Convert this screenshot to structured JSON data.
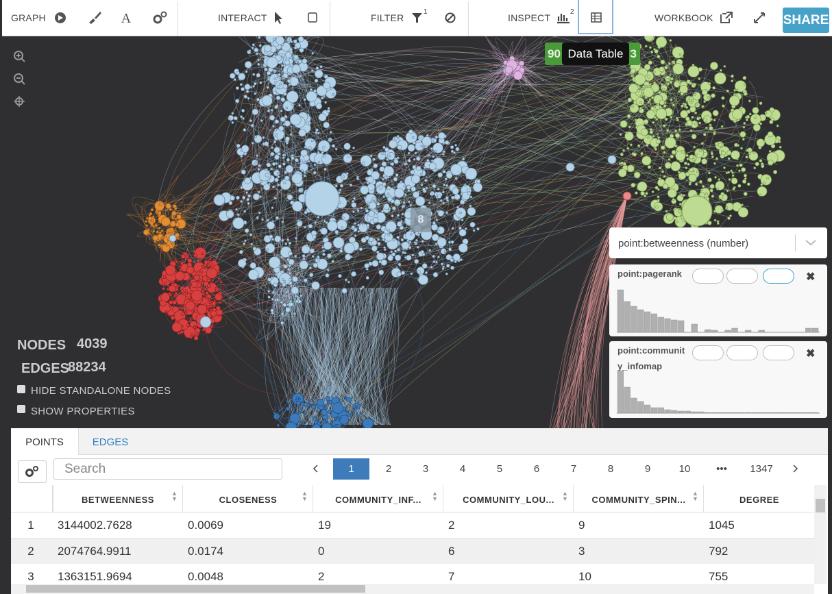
{
  "toolbar": {
    "graph": "GRAPH",
    "interact": "INTERACT",
    "filter": "FILTER",
    "filter_count": "1",
    "inspect": "INSPECT",
    "inspect_count": "2",
    "workbook": "WORKBOOK",
    "share": "SHARE"
  },
  "tooltip": "Data Table",
  "badges": [
    "90",
    "3"
  ],
  "graph": {
    "cluster_label": "8",
    "nodes_label": "NODES",
    "nodes": 4039,
    "edges_label": "EDGES",
    "edges": 88234,
    "hide_standalone": "HIDE STANDALONE NODES",
    "show_properties": "SHOW PROPERTIES"
  },
  "inspector": {
    "selector": "point:betweenness (number)",
    "histograms": [
      {
        "title": "point:pagerank",
        "bars": [
          62,
          45,
          38,
          33,
          30,
          27,
          22,
          20,
          18,
          17,
          0,
          12,
          0,
          4,
          3,
          0,
          3,
          6,
          0,
          3,
          0,
          3,
          0,
          0,
          0,
          0,
          0,
          0,
          6,
          6
        ]
      },
      {
        "title": "point:community_infomap",
        "bars": [
          62,
          38,
          22,
          17,
          12,
          8,
          8,
          5,
          4,
          3,
          3,
          2,
          2,
          1,
          1,
          1,
          1,
          1,
          1,
          1,
          1,
          1,
          1,
          1,
          1,
          1,
          1,
          1,
          1,
          1
        ]
      }
    ]
  },
  "table": {
    "tabs": [
      "POINTS",
      "EDGES"
    ],
    "search": "Search",
    "pages": [
      1,
      2,
      3,
      4,
      5,
      6,
      7,
      8,
      9,
      10,
      "•••",
      1347
    ],
    "columns": [
      "BETWEENNESS",
      "CLOSENESS",
      "COMMUNITY_INF...",
      "COMMUNITY_LOU...",
      "COMMUNITY_SPIN...",
      "DEGREE"
    ],
    "rows": [
      [
        1,
        3144002.7628,
        0.0069,
        19,
        2,
        9,
        1045
      ],
      [
        2,
        2074764.9911,
        0.0174,
        0,
        6,
        3,
        792
      ],
      [
        3,
        1363151.9694,
        0.0048,
        2,
        7,
        10,
        755
      ]
    ]
  }
}
